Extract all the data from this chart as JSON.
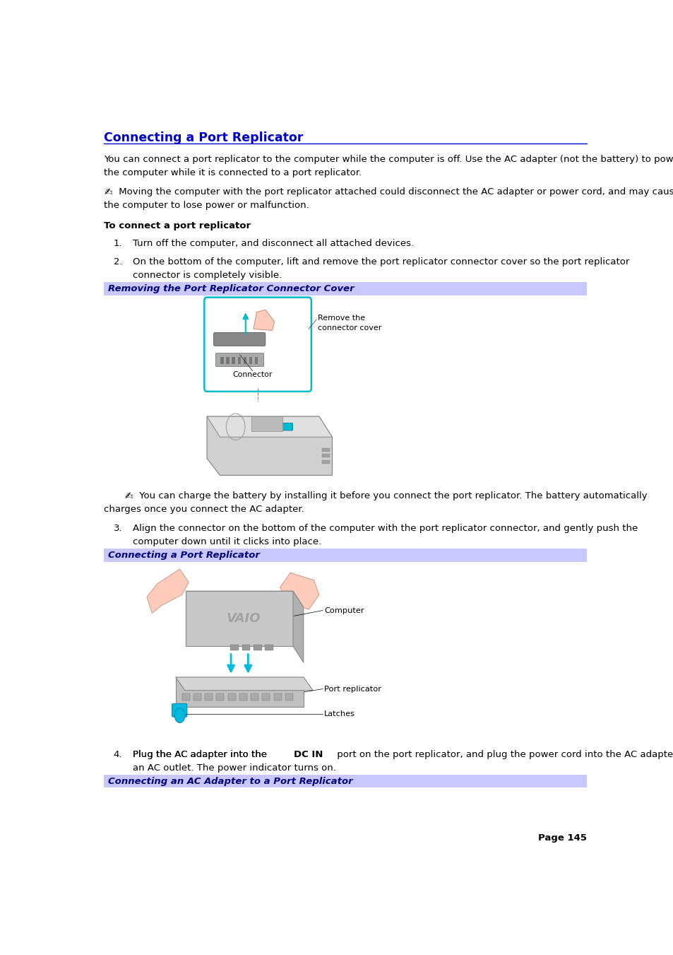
{
  "title": "Connecting a Port Replicator",
  "title_color": "#0000CC",
  "title_fontsize": 12.5,
  "page_bg": "#FFFFFF",
  "body_text_color": "#000000",
  "body_fontsize": 9.5,
  "small_fontsize": 8.5,
  "header_line_color": "#0000CC",
  "para1_line1": "You can connect a port replicator to the computer while the computer is off. Use the AC adapter (not the battery) to power",
  "para1_line2": "the computer while it is connected to a port replicator.",
  "note1_line1": " Moving the computer with the port replicator attached could disconnect the AC adapter or power cord, and may cause",
  "note1_line2": "the computer to lose power or malfunction.",
  "section_header": "To connect a port replicator",
  "step1": "Turn off the computer, and disconnect all attached devices.",
  "step2_line1": "On the bottom of the computer, lift and remove the port replicator connector cover so the port replicator",
  "step2_line2": "connector is completely visible.",
  "banner1_text": "Removing the Port Replicator Connector Cover",
  "banner2_text": "Connecting a Port Replicator",
  "banner3_text": "Connecting an AC Adapter to a Port Replicator",
  "banner_bg": "#C8C8FF",
  "banner_text_color": "#000080",
  "banner_fontsize": 9.5,
  "note2_line1": " You can charge the battery by installing it before you connect the port replicator. The battery automatically",
  "note2_line2": "charges once you connect the AC adapter.",
  "step3_line1": "Align the connector on the bottom of the computer with the port replicator connector, and gently push the",
  "step3_line2": "computer down until it clicks into place.",
  "step4_pre": "Plug the AC adapter into the ",
  "step4_bold": "DC IN",
  "step4_post_line1": " port on the port replicator, and plug the power cord into the AC adapter and",
  "step4_post_line2": "an AC outlet. The power indicator turns on.",
  "page_number": "Page 145",
  "lm": 0.038,
  "rm": 0.962,
  "cyan_color": "#00CCCC",
  "laptop_color": "#C8C8C8",
  "connector_cyan": "#00BBCC"
}
